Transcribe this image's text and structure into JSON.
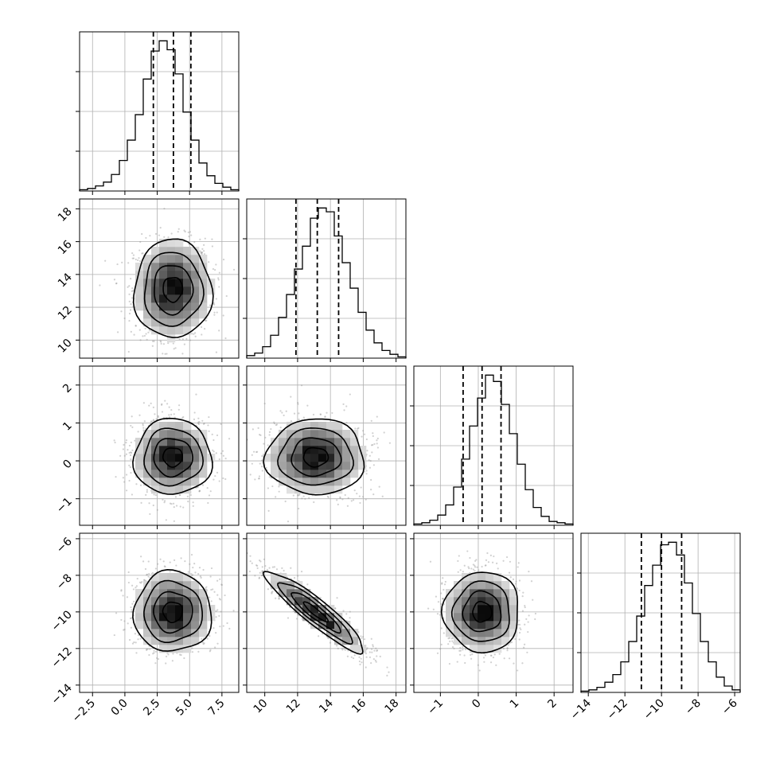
{
  "chart_data": {
    "type": "corner",
    "parameters": 4,
    "grid": true,
    "axis_labels": [],
    "ranges": [
      [
        -3.5,
        8.8
      ],
      [
        8.9,
        18.6
      ],
      [
        -1.7,
        2.5
      ],
      [
        -14.4,
        -5.7
      ]
    ],
    "ticks": [
      {
        "values": [
          -2.5,
          0.0,
          2.5,
          5.0,
          7.5
        ],
        "labels": [
          "−2.5",
          "0.0",
          "2.5",
          "5.0",
          "7.5"
        ]
      },
      {
        "values": [
          10,
          12,
          14,
          16,
          18
        ],
        "labels": [
          "10",
          "12",
          "14",
          "16",
          "18"
        ]
      },
      {
        "values": [
          -1,
          0,
          1,
          2
        ],
        "labels": [
          "−1",
          "0",
          "1",
          "2"
        ]
      },
      {
        "values": [
          -14,
          -12,
          -10,
          -8,
          -6
        ],
        "labels": [
          "−14",
          "−12",
          "−10",
          "−8",
          "−6"
        ]
      }
    ],
    "quantiles": [
      [
        2.2,
        3.75,
        5.1
      ],
      [
        11.9,
        13.2,
        14.5
      ],
      [
        -0.4,
        0.1,
        0.6
      ],
      [
        -11.1,
        -10.0,
        -8.9
      ]
    ],
    "histograms": [
      {
        "param": 0,
        "bin_edges": [
          -3.5,
          8.8
        ],
        "counts": [
          1,
          2,
          4,
          7,
          13,
          24,
          40,
          60,
          88,
          110,
          118,
          111,
          92,
          62,
          40,
          22,
          12,
          6,
          3,
          1
        ]
      },
      {
        "param": 1,
        "bin_edges": [
          8.9,
          18.6
        ],
        "counts": [
          2,
          4,
          9,
          18,
          32,
          50,
          70,
          88,
          110,
          118,
          115,
          96,
          75,
          55,
          36,
          22,
          12,
          6,
          3,
          1
        ]
      },
      {
        "param": 2,
        "bin_edges": [
          -1.7,
          2.5
        ],
        "counts": [
          1,
          2,
          4,
          8,
          16,
          30,
          52,
          78,
          100,
          118,
          113,
          95,
          72,
          48,
          28,
          14,
          7,
          3,
          2,
          1
        ]
      },
      {
        "param": 3,
        "bin_edges": [
          -14.4,
          -5.7
        ],
        "counts": [
          1,
          2,
          4,
          8,
          14,
          24,
          40,
          60,
          84,
          100,
          116,
          118,
          108,
          86,
          62,
          40,
          24,
          12,
          5,
          2
        ]
      }
    ],
    "pair_stats": [
      {
        "x": 0,
        "y": 1,
        "mean": [
          3.7,
          13.1
        ],
        "sd": [
          1.5,
          1.5
        ],
        "corr": 0.0
      },
      {
        "x": 0,
        "y": 2,
        "mean": [
          3.7,
          0.1
        ],
        "sd": [
          1.5,
          0.5
        ],
        "corr": 0.0
      },
      {
        "x": 1,
        "y": 2,
        "mean": [
          13.1,
          0.1
        ],
        "sd": [
          1.5,
          0.5
        ],
        "corr": 0.0
      },
      {
        "x": 0,
        "y": 3,
        "mean": [
          3.7,
          -10.0
        ],
        "sd": [
          1.5,
          1.1
        ],
        "corr": 0.0
      },
      {
        "x": 1,
        "y": 3,
        "mean": [
          13.1,
          -10.0
        ],
        "sd": [
          1.5,
          1.1
        ],
        "corr": -0.92
      },
      {
        "x": 2,
        "y": 3,
        "mean": [
          0.1,
          -10.0
        ],
        "sd": [
          0.5,
          1.1
        ],
        "corr": 0.0
      }
    ],
    "contour_levels_sigma": [
      0.5,
      1.0,
      1.5,
      2.0
    ],
    "colors": {
      "line": "#000000",
      "grid": "#b0b0b0",
      "points": "#9a9a9a",
      "density_dark": "#000000"
    }
  }
}
